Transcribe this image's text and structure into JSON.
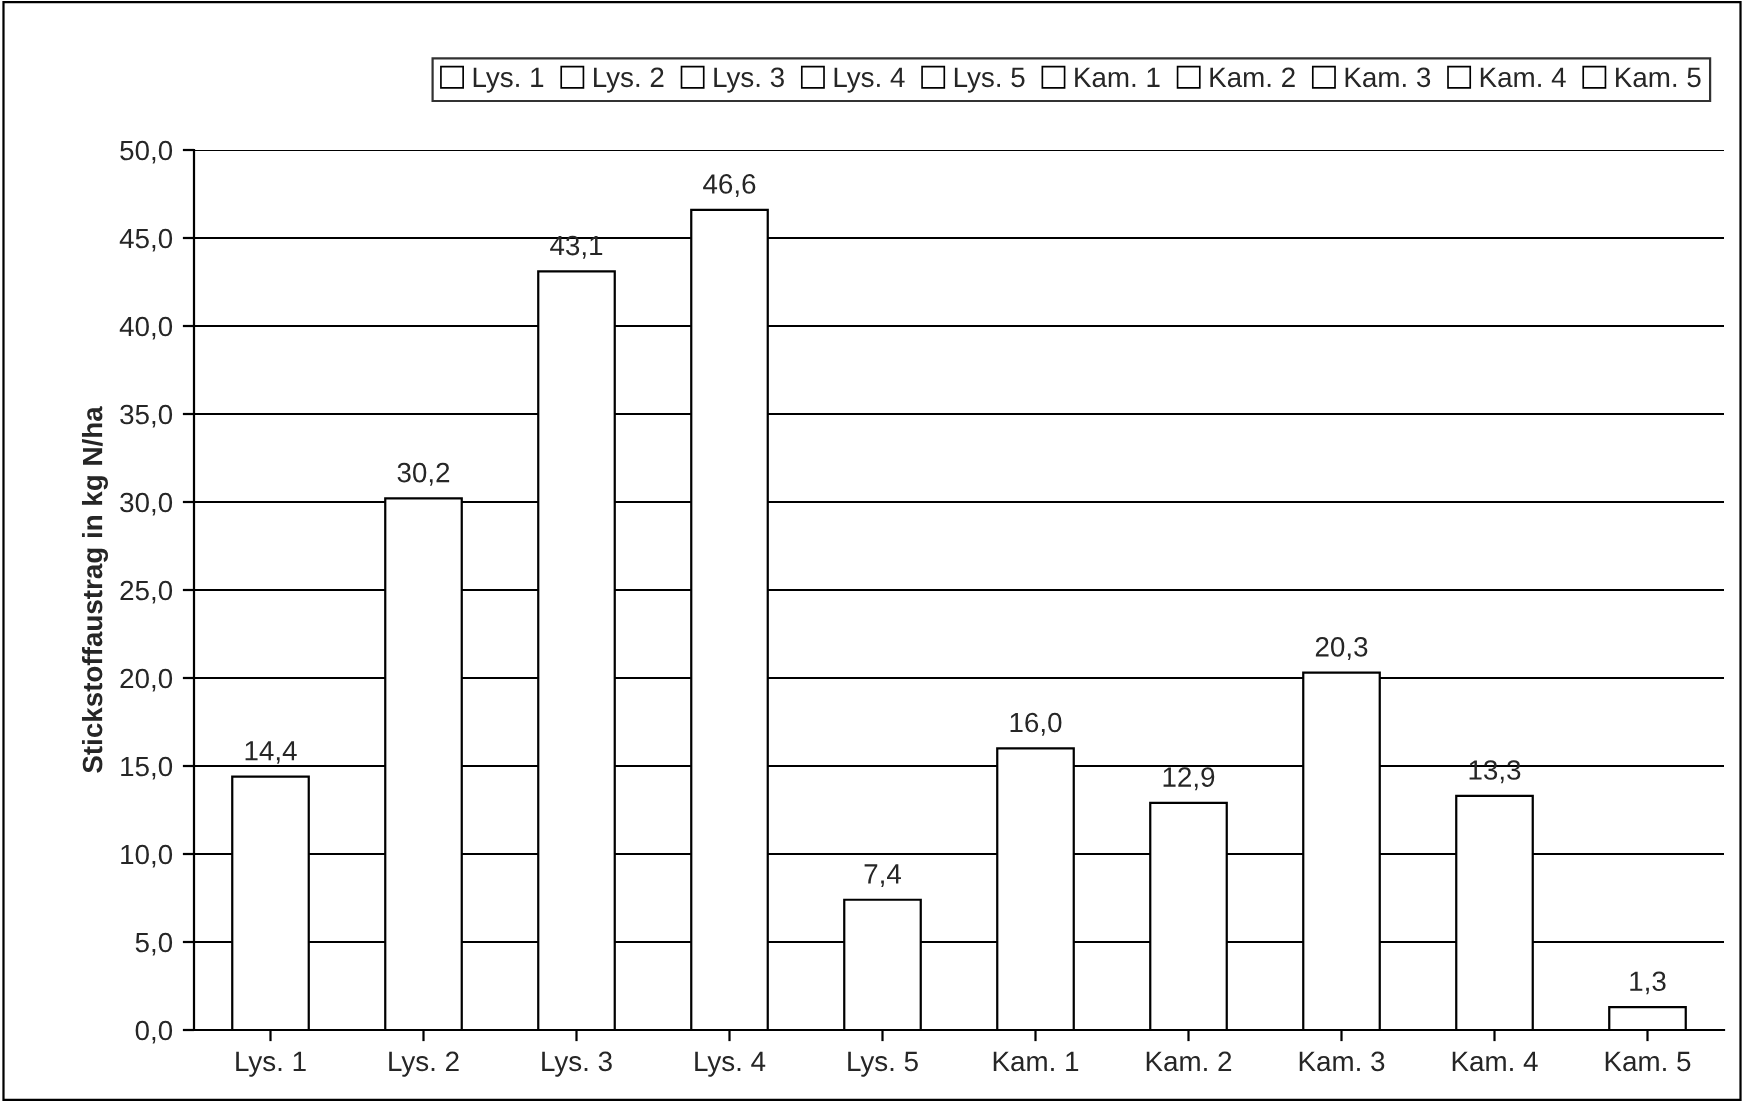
{
  "chart_data": {
    "type": "bar",
    "ylabel": "Stickstoffaustrag in kg N/ha",
    "categories": [
      "Lys. 1",
      "Lys. 2",
      "Lys. 3",
      "Lys. 4",
      "Lys. 5",
      "Kam. 1",
      "Kam. 2",
      "Kam. 3",
      "Kam. 4",
      "Kam. 5"
    ],
    "series": [
      {
        "name": "Lys. 1",
        "color": "#ffffff",
        "values": [
          14.4,
          null,
          null,
          null,
          null,
          null,
          null,
          null,
          null,
          null
        ],
        "value_labels": [
          "14,4",
          null,
          null,
          null,
          null,
          null,
          null,
          null,
          null,
          null
        ]
      },
      {
        "name": "Lys. 2",
        "color": "#ffffff",
        "values": [
          null,
          30.2,
          null,
          null,
          null,
          null,
          null,
          null,
          null,
          null
        ],
        "value_labels": [
          null,
          "30,2",
          null,
          null,
          null,
          null,
          null,
          null,
          null,
          null
        ]
      },
      {
        "name": "Lys. 3",
        "color": "#ffffff",
        "values": [
          null,
          null,
          43.1,
          null,
          null,
          null,
          null,
          null,
          null,
          null
        ],
        "value_labels": [
          null,
          null,
          "43,1",
          null,
          null,
          null,
          null,
          null,
          null,
          null
        ]
      },
      {
        "name": "Lys. 4",
        "color": "#ffffff",
        "values": [
          null,
          null,
          null,
          46.6,
          null,
          null,
          null,
          null,
          null,
          null
        ],
        "value_labels": [
          null,
          null,
          null,
          "46,6",
          null,
          null,
          null,
          null,
          null,
          null
        ]
      },
      {
        "name": "Lys. 5",
        "color": "#ffffff",
        "values": [
          null,
          null,
          null,
          null,
          7.4,
          null,
          null,
          null,
          null,
          null
        ],
        "value_labels": [
          null,
          null,
          null,
          null,
          "7,4",
          null,
          null,
          null,
          null,
          null
        ]
      },
      {
        "name": "Kam. 1",
        "color": "#ffffff",
        "values": [
          null,
          null,
          null,
          null,
          null,
          16.0,
          null,
          null,
          null,
          null
        ],
        "value_labels": [
          null,
          null,
          null,
          null,
          null,
          "16,0",
          null,
          null,
          null,
          null
        ]
      },
      {
        "name": "Kam. 2",
        "color": "#ffffff",
        "values": [
          null,
          null,
          null,
          null,
          null,
          null,
          12.9,
          null,
          null,
          null
        ],
        "value_labels": [
          null,
          null,
          null,
          null,
          null,
          null,
          "12,9",
          null,
          null,
          null
        ]
      },
      {
        "name": "Kam. 3",
        "color": "#ffffff",
        "values": [
          null,
          null,
          null,
          null,
          null,
          null,
          null,
          20.3,
          null,
          null
        ],
        "value_labels": [
          null,
          null,
          null,
          null,
          null,
          null,
          null,
          "20,3",
          null,
          null
        ]
      },
      {
        "name": "Kam. 4",
        "color": "#ffffff",
        "values": [
          null,
          null,
          null,
          null,
          null,
          null,
          null,
          null,
          13.3,
          null
        ],
        "value_labels": [
          null,
          null,
          null,
          null,
          null,
          null,
          null,
          null,
          "13,3",
          null
        ]
      },
      {
        "name": "Kam. 5",
        "color": "#ffffff",
        "values": [
          null,
          null,
          null,
          null,
          null,
          null,
          null,
          null,
          null,
          1.3
        ],
        "value_labels": [
          null,
          null,
          null,
          null,
          null,
          null,
          null,
          null,
          null,
          "1,3"
        ]
      }
    ],
    "ylim": [
      0,
      50
    ],
    "yticks": [
      {
        "value": 0,
        "label": "0,0"
      },
      {
        "value": 5,
        "label": "5,0"
      },
      {
        "value": 10,
        "label": "10,0"
      },
      {
        "value": 15,
        "label": "15,0"
      },
      {
        "value": 20,
        "label": "20,0"
      },
      {
        "value": 25,
        "label": "25,0"
      },
      {
        "value": 30,
        "label": "30,0"
      },
      {
        "value": 35,
        "label": "35,0"
      },
      {
        "value": 40,
        "label": "40,0"
      },
      {
        "value": 45,
        "label": "45,0"
      },
      {
        "value": 50,
        "label": "50,0"
      }
    ],
    "grid": "y",
    "legend": "top"
  }
}
